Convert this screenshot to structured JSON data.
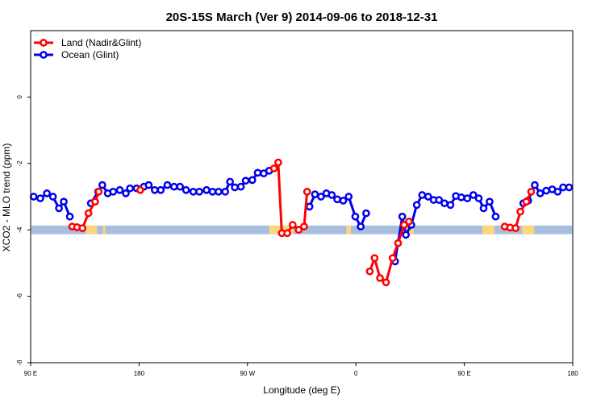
{
  "chart_data": {
    "type": "line",
    "title": "20S-15S March (Ver 9)   2014-09-06 to 2018-12-31",
    "xlabel": "Longitude (deg E)",
    "ylabel": "XCO2 - MLO trend (ppm)",
    "x_ticks": [
      {
        "value": 0,
        "label": "90 E"
      },
      {
        "value": 90,
        "label": "180"
      },
      {
        "value": 180,
        "label": "90 W"
      },
      {
        "value": 270,
        "label": "0"
      },
      {
        "value": 360,
        "label": "90 E"
      },
      {
        "value": 450,
        "label": "180"
      }
    ],
    "xlim": [
      0,
      450
    ],
    "y_ticks": [
      0,
      -2,
      -4,
      -6,
      -8
    ],
    "ylim": [
      -8,
      2
    ],
    "legend_position": "top-left",
    "band": {
      "y": -4.0,
      "half_height": 0.13,
      "color": "#a7bedf",
      "highlight_color": "#fdd57e"
    },
    "band_highlights": [
      [
        46,
        55
      ],
      [
        60,
        62
      ],
      [
        198,
        218
      ],
      [
        262,
        266
      ],
      [
        306,
        318
      ],
      [
        375,
        385
      ],
      [
        408,
        418
      ]
    ],
    "series": [
      {
        "name": "Land (Nadir&Glint)",
        "color": "#ff0000",
        "segments": [
          [
            [
              34.5,
              -3.9
            ],
            [
              38.5,
              -3.92
            ],
            [
              43,
              -3.95
            ],
            [
              48,
              -3.5
            ],
            [
              53.5,
              -3.15
            ],
            [
              56.5,
              -2.85
            ]
          ],
          [
            [
              91,
              -2.8
            ]
          ],
          [
            [
              202,
              -2.15
            ],
            [
              205.5,
              -1.97
            ],
            [
              208.5,
              -4.1
            ],
            [
              213,
              -4.1
            ],
            [
              217.5,
              -3.85
            ],
            [
              222.5,
              -4.0
            ],
            [
              227,
              -3.9
            ],
            [
              229.5,
              -2.85
            ]
          ],
          [
            [
              281.5,
              -5.25
            ],
            [
              285.5,
              -4.85
            ],
            [
              290,
              -5.45
            ],
            [
              295,
              -5.58
            ],
            [
              300.5,
              -4.85
            ],
            [
              305,
              -4.4
            ],
            [
              310,
              -3.85
            ],
            [
              314,
              -3.75
            ]
          ],
          [
            [
              393.5,
              -3.9
            ],
            [
              398,
              -3.93
            ],
            [
              402.5,
              -3.95
            ],
            [
              406.5,
              -3.45
            ],
            [
              411.5,
              -3.15
            ],
            [
              415.5,
              -2.85
            ]
          ]
        ]
      },
      {
        "name": "Ocean (Glint)",
        "color": "#0000ee",
        "segments": [
          [
            [
              2.5,
              -3.0
            ],
            [
              8,
              -3.05
            ],
            [
              13.5,
              -2.9
            ],
            [
              18.5,
              -3.0
            ],
            [
              23.5,
              -3.35
            ],
            [
              27.5,
              -3.15
            ],
            [
              32.5,
              -3.6
            ]
          ],
          [
            [
              50,
              -3.2
            ],
            [
              56,
              -2.85
            ],
            [
              59.5,
              -2.65
            ],
            [
              64,
              -2.9
            ],
            [
              68.5,
              -2.85
            ],
            [
              74,
              -2.8
            ],
            [
              79,
              -2.9
            ],
            [
              82.5,
              -2.75
            ],
            [
              88,
              -2.75
            ],
            [
              94,
              -2.7
            ],
            [
              98,
              -2.65
            ],
            [
              103,
              -2.8
            ],
            [
              108,
              -2.8
            ],
            [
              113.5,
              -2.65
            ],
            [
              119,
              -2.7
            ],
            [
              124,
              -2.7
            ],
            [
              129,
              -2.8
            ],
            [
              135,
              -2.85
            ],
            [
              140,
              -2.85
            ],
            [
              146,
              -2.8
            ],
            [
              151,
              -2.85
            ],
            [
              156,
              -2.85
            ],
            [
              161.5,
              -2.85
            ],
            [
              165.5,
              -2.55
            ],
            [
              169.5,
              -2.72
            ],
            [
              174.5,
              -2.7
            ],
            [
              178.5,
              -2.52
            ],
            [
              184,
              -2.5
            ],
            [
              188.5,
              -2.28
            ],
            [
              193.5,
              -2.3
            ],
            [
              198,
              -2.22
            ]
          ],
          [
            [
              231.5,
              -3.3
            ],
            [
              236,
              -2.93
            ],
            [
              241,
              -3.0
            ],
            [
              245.5,
              -2.9
            ],
            [
              250,
              -2.95
            ],
            [
              254.5,
              -3.08
            ],
            [
              259.5,
              -3.12
            ],
            [
              264,
              -3.0
            ],
            [
              269.5,
              -3.6
            ],
            [
              274,
              -3.9
            ],
            [
              278.5,
              -3.5
            ]
          ],
          [
            [
              302.5,
              -4.95
            ],
            [
              308.5,
              -3.6
            ],
            [
              311.5,
              -4.15
            ],
            [
              316,
              -3.85
            ],
            [
              320.5,
              -3.25
            ],
            [
              325,
              -2.95
            ],
            [
              330,
              -3.0
            ],
            [
              334.5,
              -3.1
            ],
            [
              339,
              -3.1
            ],
            [
              343.5,
              -3.2
            ],
            [
              348.5,
              -3.25
            ],
            [
              353,
              -2.98
            ],
            [
              357.5,
              -3.02
            ],
            [
              362.5,
              -3.05
            ],
            [
              367.5,
              -2.95
            ],
            [
              372,
              -3.05
            ],
            [
              376,
              -3.35
            ],
            [
              381,
              -3.15
            ],
            [
              386,
              -3.6
            ]
          ],
          [
            [
              409,
              -3.2
            ],
            [
              413,
              -3.12
            ],
            [
              418.5,
              -2.65
            ],
            [
              423,
              -2.9
            ],
            [
              428,
              -2.82
            ],
            [
              433,
              -2.78
            ],
            [
              437.5,
              -2.85
            ],
            [
              442,
              -2.72
            ],
            [
              447,
              -2.72
            ]
          ]
        ]
      }
    ]
  }
}
